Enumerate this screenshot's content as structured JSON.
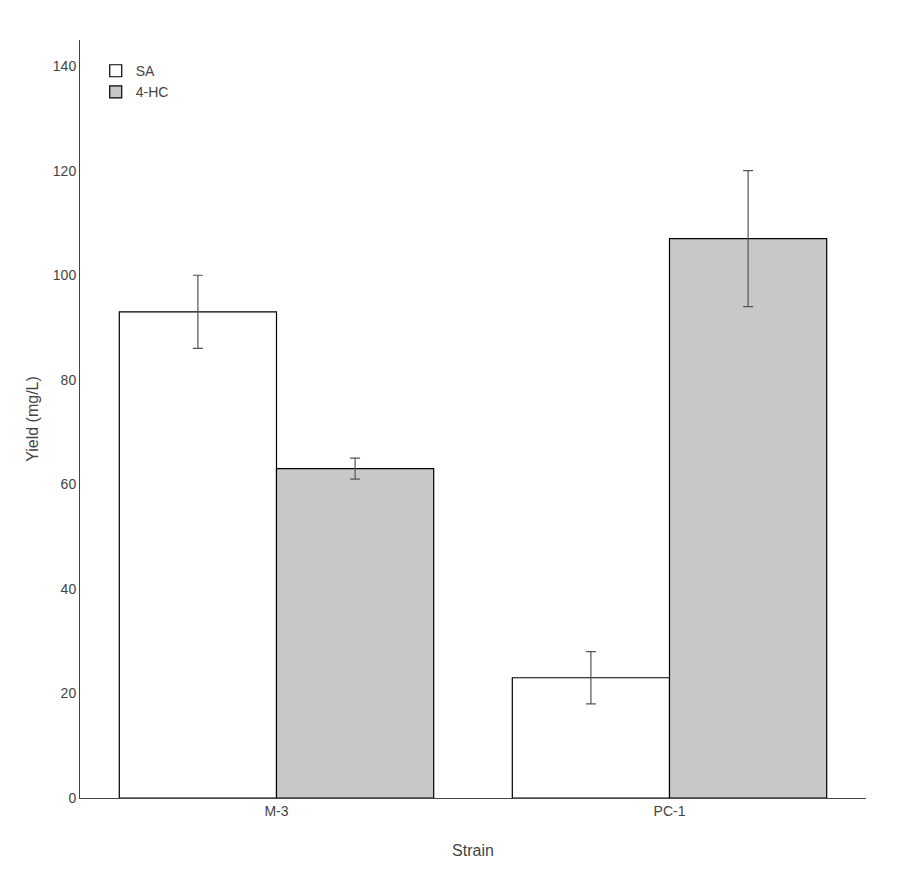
{
  "chart_data": {
    "type": "bar",
    "xlabel": "Strain",
    "ylabel": "Yield (mg/L)",
    "categories": [
      "M-3",
      "PC-1"
    ],
    "series": [
      {
        "name": "SA",
        "color": "#ffffff",
        "values": [
          93,
          23
        ],
        "errors": [
          7,
          5
        ]
      },
      {
        "name": "4-HC",
        "color": "#c8c8c8",
        "values": [
          63,
          107
        ],
        "errors": [
          2,
          13
        ]
      }
    ],
    "ylim": [
      0,
      145
    ],
    "yticks": [
      0,
      20,
      40,
      60,
      80,
      100,
      120,
      140
    ],
    "grid": false,
    "legend": "upper left"
  }
}
